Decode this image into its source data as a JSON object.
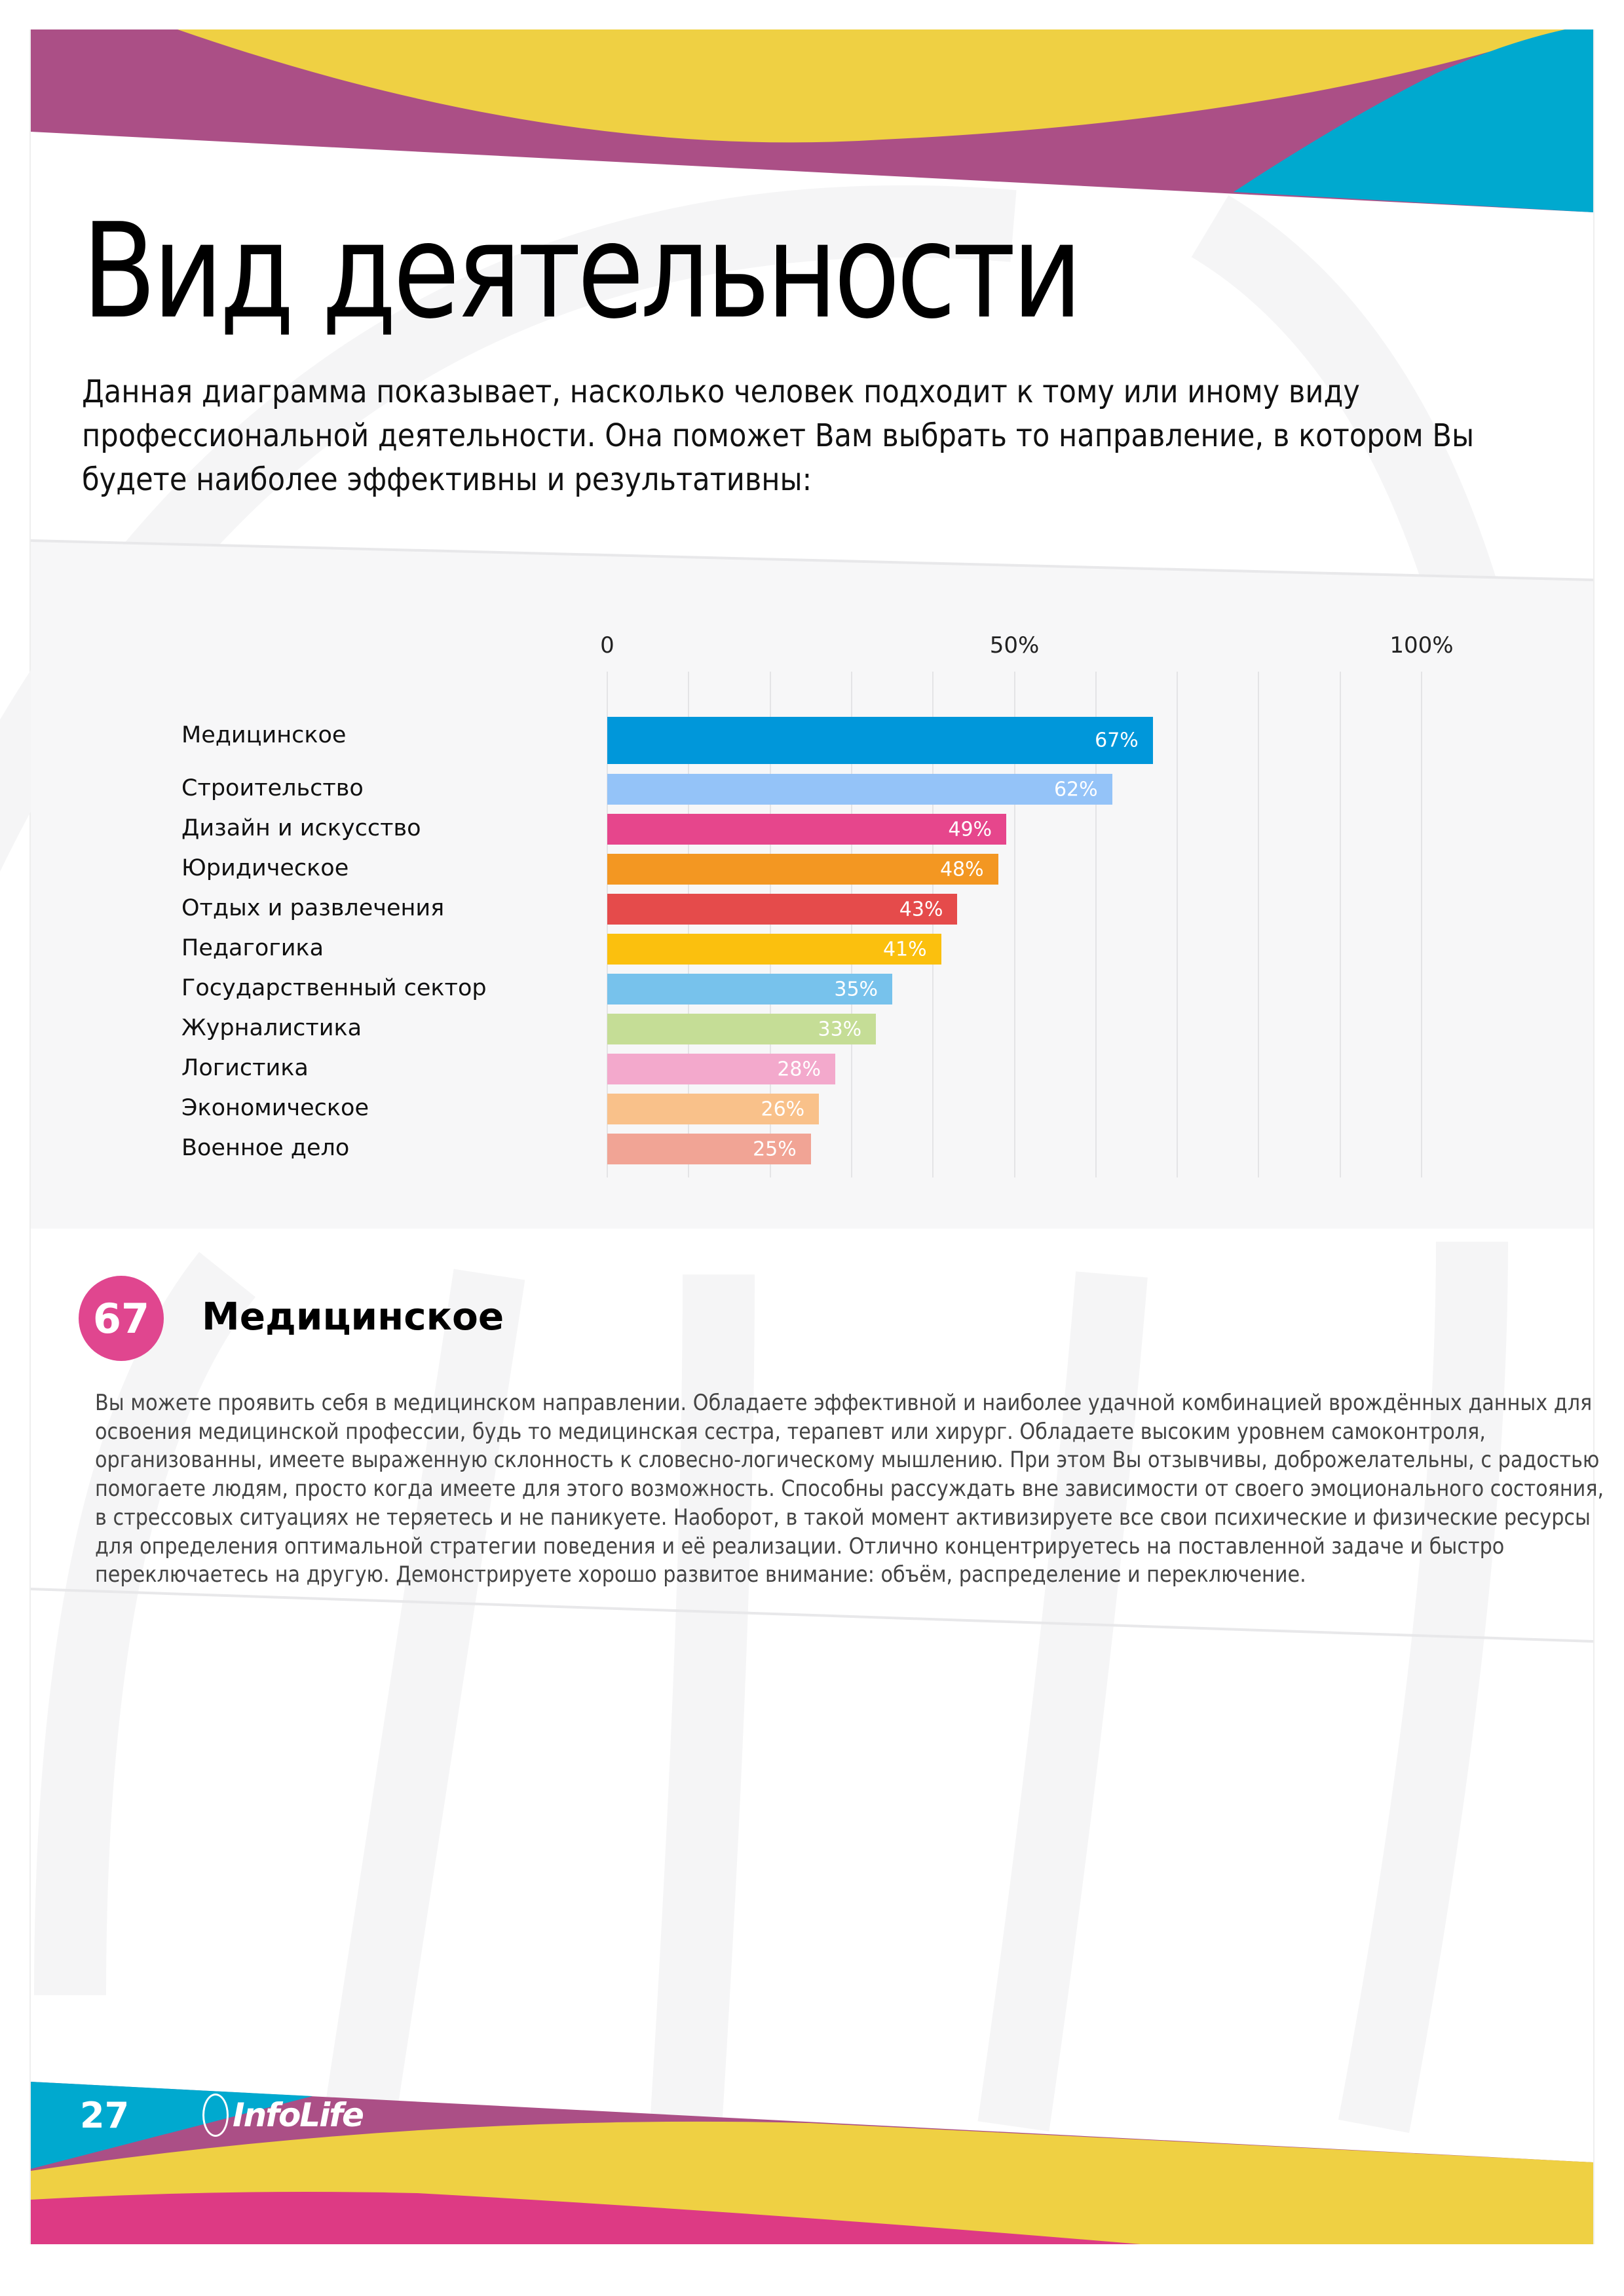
{
  "header": {
    "title": "Вид деятельности",
    "intro": "Данная диаграмма показывает, насколько человек подходит к тому или иному виду профессиональной деятельности. Она поможет Вам выбрать то направление, в котором Вы будете наиболее эффективны и результативны:"
  },
  "colors": {
    "header_purple": "#ab4f86",
    "header_yellow": "#efd043",
    "header_cyan": "#00a9cf",
    "footer_pink": "#dd3a84",
    "badge": "#e0468f"
  },
  "chart_data": {
    "type": "bar",
    "orientation": "horizontal",
    "title": "",
    "xlabel": "",
    "ylabel": "",
    "xlim": [
      0,
      100
    ],
    "x_ticks": [
      "0",
      "50%",
      "100%"
    ],
    "grid": true,
    "categories": [
      "Медицинское",
      "Строительство",
      "Дизайн и искусство",
      "Юридическое",
      "Отдых и развлечения",
      "Педагогика",
      "Государственный сектор",
      "Журналистика",
      "Логистика",
      "Экономическое",
      "Военное дело"
    ],
    "values": [
      67,
      62,
      49,
      48,
      43,
      41,
      35,
      33,
      28,
      26,
      25
    ],
    "value_labels": [
      "67%",
      "62%",
      "49%",
      "48%",
      "43%",
      "41%",
      "35%",
      "33%",
      "28%",
      "26%",
      "25%"
    ],
    "bar_colors": [
      "#0097da",
      "#94c3f8",
      "#e6468c",
      "#f39722",
      "#e54b4b",
      "#fbc00e",
      "#77c2ec",
      "#c5dd96",
      "#f3a9cc",
      "#f9c18a",
      "#f1a495"
    ]
  },
  "section": {
    "score": "67",
    "heading": "Медицинское",
    "text": "Вы можете проявить себя в медицинском направлении. Обладаете эффективной и наиболее удачной комбинацией врождённых данных для освоения медицинской профессии, будь то медицинская сестра, терапевт или хирург. Обладаете высоким уровнем самоконтроля, организованны, имеете выраженную склонность к словесно-логическому мышлению. При этом Вы отзывчивы, доброжелательны, с радостью помогаете людям, просто когда имеете для этого возможность. Способны рассуждать вне зависимости от своего эмоционального состояния, в стрессовых ситуациях не теряетесь и не паникуете. Наоборот, в такой момент активизируете все свои психические и физические ресурсы для определения оптимальной стратегии поведения и её реализации. Отлично концентрируетесь на поставленной задаче и быстро переключаетесь на другую. Демонстрируете хорошо развитое внимание: объём, распределение и переключение."
  },
  "footer": {
    "page_number": "27",
    "logo": "InfoLife"
  }
}
